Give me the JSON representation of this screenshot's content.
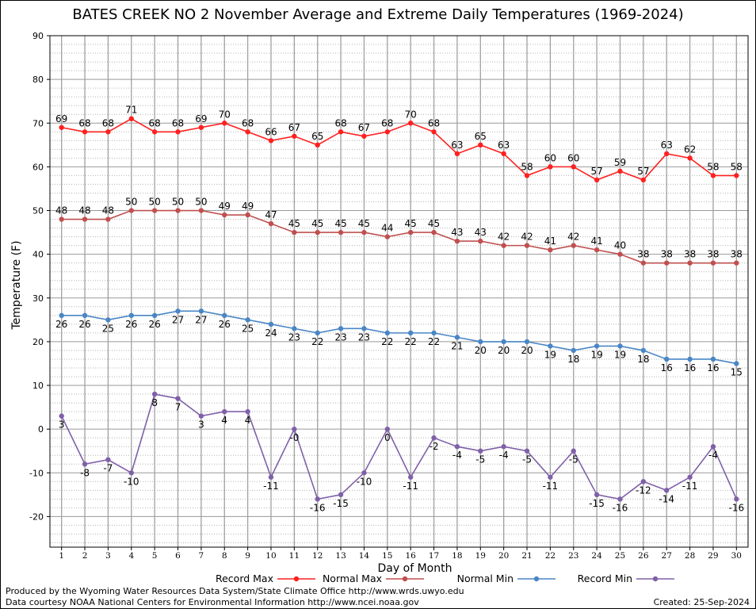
{
  "chart_data": {
    "type": "line",
    "title": "BATES CREEK NO 2 November Average and Extreme Daily Temperatures (1969-2024)",
    "xlabel": "Day of Month",
    "ylabel": "Temperature (F)",
    "ylim": [
      -27,
      90
    ],
    "yticks": [
      -20,
      -10,
      0,
      10,
      20,
      30,
      40,
      50,
      60,
      70,
      80,
      90
    ],
    "xlim": [
      0.5,
      30.5
    ],
    "grid": true,
    "legend_position": "bottom",
    "x": [
      1,
      2,
      3,
      4,
      5,
      6,
      7,
      8,
      9,
      10,
      11,
      12,
      13,
      14,
      15,
      16,
      17,
      18,
      19,
      20,
      21,
      22,
      23,
      24,
      25,
      26,
      27,
      28,
      29,
      30
    ],
    "series": [
      {
        "name": "Record Max",
        "color": "#ff2020",
        "values": [
          69,
          68,
          68,
          71,
          68,
          68,
          69,
          70,
          68,
          66,
          67,
          65,
          68,
          67,
          68,
          70,
          68,
          63,
          65,
          63,
          58,
          60,
          60,
          57,
          59,
          57,
          63,
          62,
          58,
          58
        ],
        "labels": [
          "69",
          "68",
          "68",
          "71",
          "68",
          "68",
          "69",
          "70",
          "68",
          "66",
          "67",
          "65",
          "68",
          "67",
          "68",
          "70",
          "68",
          "63",
          "65",
          "63",
          "58",
          "60",
          "60",
          "57",
          "59",
          "57",
          "63",
          "62",
          "58",
          "58"
        ]
      },
      {
        "name": "Normal Max",
        "color": "#c05050",
        "values": [
          48,
          48,
          48,
          50,
          50,
          50,
          50,
          49,
          49,
          47,
          45,
          45,
          45,
          45,
          44,
          45,
          45,
          43,
          43,
          42,
          42,
          41,
          42,
          41,
          40,
          38,
          38,
          38,
          38,
          38
        ],
        "labels": [
          "48",
          "48",
          "48",
          "50",
          "50",
          "50",
          "50",
          "49",
          "49",
          "47",
          "45",
          "45",
          "45",
          "45",
          "44",
          "45",
          "45",
          "43",
          "43",
          "42",
          "42",
          "41",
          "42",
          "41",
          "40",
          "38",
          "38",
          "38",
          "38",
          "38"
        ]
      },
      {
        "name": "Normal Min",
        "color": "#4a86c5",
        "values": [
          26,
          26,
          25,
          26,
          26,
          27,
          27,
          26,
          25,
          24,
          23,
          22,
          23,
          23,
          22,
          22,
          22,
          21,
          20,
          20,
          20,
          19,
          18,
          19,
          19,
          18,
          16,
          16,
          16,
          15
        ],
        "labels": [
          "26",
          "26",
          "25",
          "26",
          "26",
          "27",
          "27",
          "26",
          "25",
          "24",
          "23",
          "22",
          "23",
          "23",
          "22",
          "22",
          "22",
          "21",
          "20",
          "20",
          "20",
          "19",
          "18",
          "19",
          "19",
          "18",
          "16",
          "16",
          "16",
          "15"
        ]
      },
      {
        "name": "Record Min",
        "color": "#8060a8",
        "values": [
          3,
          -8,
          -7,
          -10,
          8,
          7,
          3,
          4,
          4,
          -11,
          0,
          -16,
          -15,
          -10,
          0,
          -11,
          -2,
          -4,
          -5,
          -4,
          -5,
          -11,
          -5,
          -15,
          -16,
          -12,
          -14,
          -11,
          -4,
          -16
        ],
        "labels": [
          "3",
          "-8",
          "-7",
          "-10",
          "8",
          "7",
          "3",
          "4",
          "4",
          "-11",
          "-0",
          "-16",
          "-15",
          "-10",
          "0",
          "-11",
          "-2",
          "-4",
          "-5",
          "-4",
          "-5",
          "-11",
          "-5",
          "-15",
          "-16",
          "-12",
          "-14",
          "-11",
          "-4",
          "-16"
        ]
      }
    ]
  },
  "footer": {
    "credit_line_1": "Produced by the Wyoming Water Resources Data System/State Climate Office http://www.wrds.uwyo.edu",
    "credit_line_2": "Data courtesy NOAA National Centers for Environmental Information http://www.ncei.noaa.gov",
    "created": "Created:  25-Sep-2024"
  }
}
